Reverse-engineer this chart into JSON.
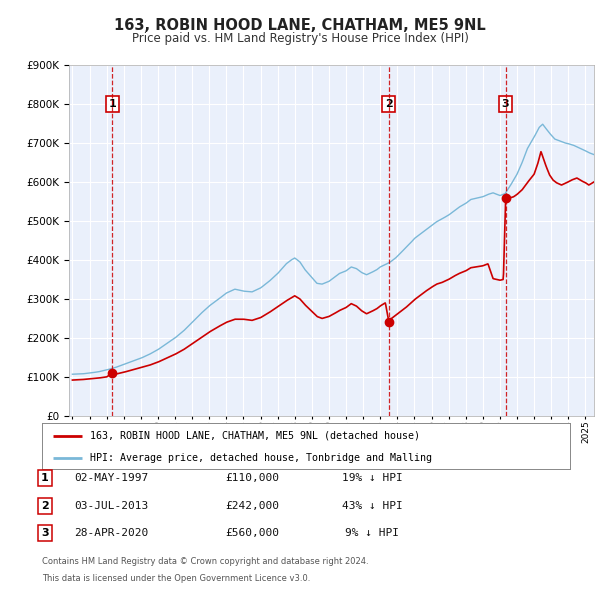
{
  "title": "163, ROBIN HOOD LANE, CHATHAM, ME5 9NL",
  "subtitle": "Price paid vs. HM Land Registry's House Price Index (HPI)",
  "bg_color": "#ffffff",
  "plot_bg_color": "#eaf0fb",
  "grid_color": "#ffffff",
  "hpi_color": "#7ab8d8",
  "price_color": "#cc0000",
  "ylim": [
    0,
    900000
  ],
  "yticks": [
    0,
    100000,
    200000,
    300000,
    400000,
    500000,
    600000,
    700000,
    800000,
    900000
  ],
  "xlim_start": 1994.8,
  "xlim_end": 2025.5,
  "xticks": [
    1995,
    1996,
    1997,
    1998,
    1999,
    2000,
    2001,
    2002,
    2003,
    2004,
    2005,
    2006,
    2007,
    2008,
    2009,
    2010,
    2011,
    2012,
    2013,
    2014,
    2015,
    2016,
    2017,
    2018,
    2019,
    2020,
    2021,
    2022,
    2023,
    2024,
    2025
  ],
  "sale_dates": [
    1997.33,
    2013.5,
    2020.33
  ],
  "sale_prices": [
    110000,
    242000,
    560000
  ],
  "sale_labels": [
    "1",
    "2",
    "3"
  ],
  "legend_house_label": "163, ROBIN HOOD LANE, CHATHAM, ME5 9NL (detached house)",
  "legend_hpi_label": "HPI: Average price, detached house, Tonbridge and Malling",
  "footer1": "Contains HM Land Registry data © Crown copyright and database right 2024.",
  "footer2": "This data is licensed under the Open Government Licence v3.0.",
  "table_rows": [
    {
      "num": "1",
      "date": "02-MAY-1997",
      "price": "£110,000",
      "pct": "19% ↓ HPI"
    },
    {
      "num": "2",
      "date": "03-JUL-2013",
      "price": "£242,000",
      "pct": "43% ↓ HPI"
    },
    {
      "num": "3",
      "date": "28-APR-2020",
      "price": "£560,000",
      "pct": "9% ↓ HPI"
    }
  ],
  "hpi_anchors": [
    [
      1995.0,
      107000
    ],
    [
      1995.3,
      107500
    ],
    [
      1995.6,
      108000
    ],
    [
      1996.0,
      110000
    ],
    [
      1996.5,
      113000
    ],
    [
      1997.0,
      118000
    ],
    [
      1997.5,
      124000
    ],
    [
      1998.0,
      132000
    ],
    [
      1998.5,
      140000
    ],
    [
      1999.0,
      148000
    ],
    [
      1999.5,
      158000
    ],
    [
      2000.0,
      170000
    ],
    [
      2000.5,
      185000
    ],
    [
      2001.0,
      200000
    ],
    [
      2001.5,
      218000
    ],
    [
      2002.0,
      240000
    ],
    [
      2002.5,
      262000
    ],
    [
      2003.0,
      282000
    ],
    [
      2003.5,
      298000
    ],
    [
      2004.0,
      315000
    ],
    [
      2004.5,
      325000
    ],
    [
      2005.0,
      320000
    ],
    [
      2005.5,
      318000
    ],
    [
      2006.0,
      328000
    ],
    [
      2006.5,
      345000
    ],
    [
      2007.0,
      365000
    ],
    [
      2007.3,
      380000
    ],
    [
      2007.5,
      390000
    ],
    [
      2007.8,
      400000
    ],
    [
      2008.0,
      405000
    ],
    [
      2008.3,
      395000
    ],
    [
      2008.6,
      375000
    ],
    [
      2009.0,
      355000
    ],
    [
      2009.3,
      340000
    ],
    [
      2009.6,
      338000
    ],
    [
      2010.0,
      345000
    ],
    [
      2010.3,
      355000
    ],
    [
      2010.6,
      365000
    ],
    [
      2011.0,
      372000
    ],
    [
      2011.3,
      382000
    ],
    [
      2011.6,
      378000
    ],
    [
      2011.9,
      368000
    ],
    [
      2012.2,
      362000
    ],
    [
      2012.5,
      368000
    ],
    [
      2012.8,
      375000
    ],
    [
      2013.0,
      382000
    ],
    [
      2013.3,
      388000
    ],
    [
      2013.6,
      395000
    ],
    [
      2013.9,
      405000
    ],
    [
      2014.2,
      418000
    ],
    [
      2014.5,
      432000
    ],
    [
      2014.8,
      445000
    ],
    [
      2015.0,
      455000
    ],
    [
      2015.3,
      465000
    ],
    [
      2015.6,
      475000
    ],
    [
      2016.0,
      488000
    ],
    [
      2016.3,
      498000
    ],
    [
      2016.6,
      505000
    ],
    [
      2017.0,
      515000
    ],
    [
      2017.3,
      525000
    ],
    [
      2017.6,
      535000
    ],
    [
      2018.0,
      545000
    ],
    [
      2018.3,
      555000
    ],
    [
      2018.6,
      558000
    ],
    [
      2019.0,
      562000
    ],
    [
      2019.3,
      568000
    ],
    [
      2019.6,
      572000
    ],
    [
      2020.0,
      565000
    ],
    [
      2020.3,
      570000
    ],
    [
      2020.6,
      590000
    ],
    [
      2021.0,
      620000
    ],
    [
      2021.3,
      650000
    ],
    [
      2021.6,
      685000
    ],
    [
      2022.0,
      715000
    ],
    [
      2022.3,
      740000
    ],
    [
      2022.5,
      748000
    ],
    [
      2022.6,
      742000
    ],
    [
      2022.9,
      725000
    ],
    [
      2023.2,
      710000
    ],
    [
      2023.5,
      705000
    ],
    [
      2023.8,
      700000
    ],
    [
      2024.0,
      698000
    ],
    [
      2024.3,
      694000
    ],
    [
      2024.6,
      688000
    ],
    [
      2024.9,
      682000
    ],
    [
      2025.2,
      675000
    ],
    [
      2025.5,
      670000
    ]
  ],
  "price_anchors": [
    [
      1995.0,
      92000
    ],
    [
      1995.5,
      93000
    ],
    [
      1996.0,
      95000
    ],
    [
      1996.5,
      97000
    ],
    [
      1997.0,
      100000
    ],
    [
      1997.33,
      110000
    ],
    [
      1997.6,
      108000
    ],
    [
      1998.0,
      112000
    ],
    [
      1998.5,
      118000
    ],
    [
      1999.0,
      124000
    ],
    [
      1999.5,
      130000
    ],
    [
      2000.0,
      138000
    ],
    [
      2000.5,
      148000
    ],
    [
      2001.0,
      158000
    ],
    [
      2001.5,
      170000
    ],
    [
      2002.0,
      185000
    ],
    [
      2002.5,
      200000
    ],
    [
      2003.0,
      215000
    ],
    [
      2003.5,
      228000
    ],
    [
      2004.0,
      240000
    ],
    [
      2004.5,
      248000
    ],
    [
      2005.0,
      248000
    ],
    [
      2005.5,
      245000
    ],
    [
      2006.0,
      252000
    ],
    [
      2006.5,
      265000
    ],
    [
      2007.0,
      280000
    ],
    [
      2007.5,
      295000
    ],
    [
      2008.0,
      308000
    ],
    [
      2008.3,
      300000
    ],
    [
      2008.6,
      285000
    ],
    [
      2009.0,
      268000
    ],
    [
      2009.3,
      255000
    ],
    [
      2009.6,
      250000
    ],
    [
      2010.0,
      255000
    ],
    [
      2010.3,
      262000
    ],
    [
      2010.6,
      270000
    ],
    [
      2011.0,
      278000
    ],
    [
      2011.3,
      288000
    ],
    [
      2011.6,
      282000
    ],
    [
      2011.9,
      270000
    ],
    [
      2012.2,
      262000
    ],
    [
      2012.5,
      268000
    ],
    [
      2012.8,
      275000
    ],
    [
      2013.0,
      282000
    ],
    [
      2013.3,
      290000
    ],
    [
      2013.5,
      242000
    ],
    [
      2013.6,
      248000
    ],
    [
      2013.9,
      258000
    ],
    [
      2014.2,
      268000
    ],
    [
      2014.5,
      278000
    ],
    [
      2014.8,
      290000
    ],
    [
      2015.0,
      298000
    ],
    [
      2015.3,
      308000
    ],
    [
      2015.6,
      318000
    ],
    [
      2016.0,
      330000
    ],
    [
      2016.3,
      338000
    ],
    [
      2016.6,
      342000
    ],
    [
      2017.0,
      350000
    ],
    [
      2017.3,
      358000
    ],
    [
      2017.6,
      365000
    ],
    [
      2018.0,
      372000
    ],
    [
      2018.3,
      380000
    ],
    [
      2018.6,
      382000
    ],
    [
      2019.0,
      385000
    ],
    [
      2019.3,
      390000
    ],
    [
      2019.6,
      352000
    ],
    [
      2020.0,
      348000
    ],
    [
      2020.2,
      350000
    ],
    [
      2020.33,
      560000
    ],
    [
      2020.5,
      558000
    ],
    [
      2020.8,
      562000
    ],
    [
      2021.0,
      568000
    ],
    [
      2021.3,
      580000
    ],
    [
      2021.6,
      598000
    ],
    [
      2022.0,
      620000
    ],
    [
      2022.2,
      645000
    ],
    [
      2022.4,
      678000
    ],
    [
      2022.5,
      665000
    ],
    [
      2022.7,
      640000
    ],
    [
      2022.9,
      618000
    ],
    [
      2023.1,
      605000
    ],
    [
      2023.3,
      598000
    ],
    [
      2023.6,
      592000
    ],
    [
      2023.9,
      598000
    ],
    [
      2024.2,
      605000
    ],
    [
      2024.5,
      610000
    ],
    [
      2024.8,
      602000
    ],
    [
      2025.0,
      598000
    ],
    [
      2025.2,
      592000
    ],
    [
      2025.5,
      600000
    ]
  ]
}
